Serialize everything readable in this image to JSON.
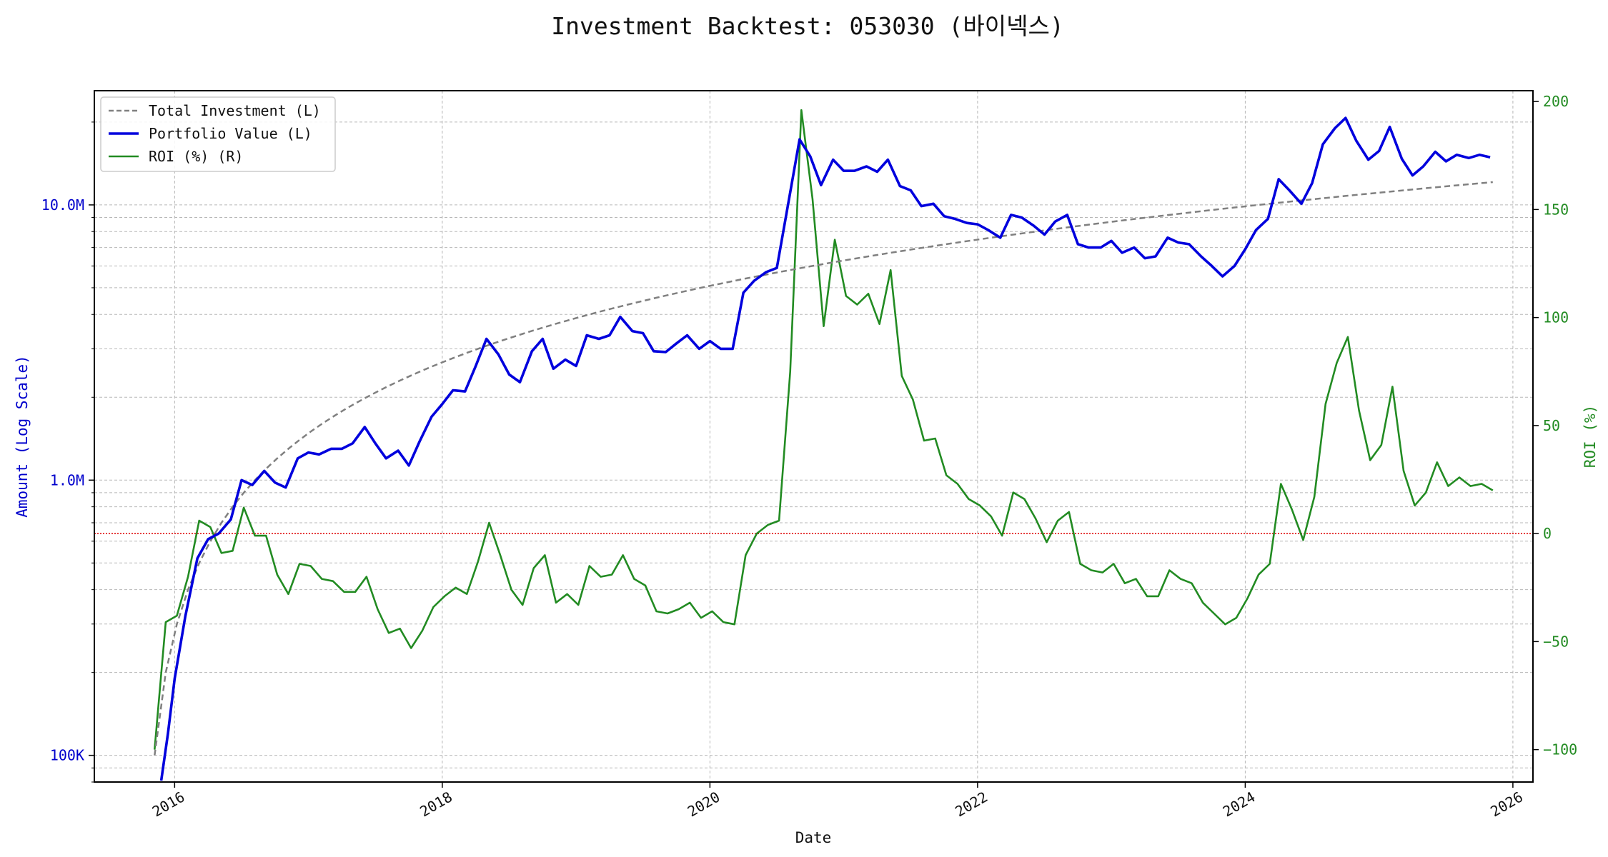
{
  "chart_data": {
    "type": "line",
    "title": "Investment Backtest: 053030 (바이넥스)",
    "xlabel": "Date",
    "ylabel_left": "Amount (Log Scale)",
    "ylabel_right": "ROI (%)",
    "left_scale": "log",
    "xlim": [
      2015.4,
      2026.15
    ],
    "ylim_left": [
      80000,
      26000000
    ],
    "ylim_right": [
      -115,
      205
    ],
    "x_ticks": [
      {
        "value": 2016,
        "label": "2016"
      },
      {
        "value": 2018,
        "label": "2018"
      },
      {
        "value": 2020,
        "label": "2020"
      },
      {
        "value": 2022,
        "label": "2022"
      },
      {
        "value": 2024,
        "label": "2024"
      },
      {
        "value": 2026,
        "label": "2026"
      }
    ],
    "y_left_ticks": [
      {
        "value": 100000,
        "label": "100K"
      },
      {
        "value": 1000000,
        "label": "1.0M"
      },
      {
        "value": 10000000,
        "label": "10.0M"
      }
    ],
    "y_right_ticks": [
      {
        "value": -100,
        "label": "−100"
      },
      {
        "value": -50,
        "label": "−50"
      },
      {
        "value": 0,
        "label": "0"
      },
      {
        "value": 50,
        "label": "50"
      },
      {
        "value": 100,
        "label": "100"
      },
      {
        "value": 150,
        "label": "150"
      },
      {
        "value": 200,
        "label": "200"
      }
    ],
    "grid": true,
    "legend_position": "top-left",
    "reference_line": {
      "axis": "right",
      "value": 0,
      "color": "#dd0000"
    },
    "colors": {
      "investment": "#808080",
      "portfolio": "#0000dd",
      "roi": "#228b22",
      "left_axis": "#0000cc",
      "right_axis": "#228b22"
    },
    "series": [
      {
        "name": "Total Investment (L)",
        "axis": "left",
        "style": "dashed",
        "x_start": 2015.85,
        "x_step": 0.0833333,
        "values": [
          100000,
          200000,
          300000,
          400000,
          500000,
          600000,
          700000,
          800000,
          900000,
          1000000,
          1100000,
          1200000,
          1300000,
          1400000,
          1500000,
          1600000,
          1700000,
          1800000,
          1900000,
          2000000,
          2100000,
          2200000,
          2300000,
          2400000,
          2500000,
          2600000,
          2700000,
          2800000,
          2900000,
          3000000,
          3100000,
          3200000,
          3300000,
          3400000,
          3500000,
          3600000,
          3700000,
          3800000,
          3900000,
          4000000,
          4100000,
          4200000,
          4300000,
          4400000,
          4500000,
          4600000,
          4700000,
          4800000,
          4900000,
          5000000,
          5100000,
          5200000,
          5300000,
          5400000,
          5500000,
          5600000,
          5700000,
          5800000,
          5900000,
          6000000,
          6100000,
          6200000,
          6300000,
          6400000,
          6500000,
          6600000,
          6700000,
          6800000,
          6900000,
          7000000,
          7100000,
          7200000,
          7300000,
          7400000,
          7500000,
          7600000,
          7700000,
          7800000,
          7900000,
          8000000,
          8100000,
          8200000,
          8300000,
          8400000,
          8500000,
          8600000,
          8700000,
          8800000,
          8900000,
          9000000,
          9100000,
          9200000,
          9300000,
          9400000,
          9500000,
          9600000,
          9700000,
          9800000,
          9900000,
          10000000,
          10100000,
          10200000,
          10300000,
          10400000,
          10500000,
          10600000,
          10700000,
          10800000,
          10900000,
          11000000,
          11100000,
          11200000,
          11300000,
          11400000,
          11500000,
          11600000,
          11700000,
          11800000,
          11900000,
          12000000,
          12100000
        ]
      },
      {
        "name": "Portfolio Value (L)",
        "axis": "left",
        "style": "solid",
        "x": [
          2015.9,
          2015.95,
          2016.0,
          2016.08,
          2016.17,
          2016.25,
          2016.33,
          2016.42,
          2016.5,
          2016.58,
          2016.67,
          2016.75,
          2016.83,
          2016.92,
          2017.0,
          2017.08,
          2017.17,
          2017.25,
          2017.33,
          2017.42,
          2017.5,
          2017.58,
          2017.67,
          2017.75,
          2017.83,
          2017.92,
          2018.0,
          2018.08,
          2018.17,
          2018.25,
          2018.33,
          2018.42,
          2018.5,
          2018.58,
          2018.67,
          2018.75,
          2018.83,
          2018.92,
          2019.0,
          2019.08,
          2019.17,
          2019.25,
          2019.33,
          2019.42,
          2019.5,
          2019.58,
          2019.67,
          2019.75,
          2019.83,
          2019.92,
          2020.0,
          2020.08,
          2020.17,
          2020.25,
          2020.33,
          2020.42,
          2020.5,
          2020.58,
          2020.67,
          2020.75,
          2020.83,
          2020.92,
          2021.0,
          2021.08,
          2021.17,
          2021.25,
          2021.33,
          2021.42,
          2021.5,
          2021.58,
          2021.67,
          2021.75,
          2021.83,
          2021.92,
          2022.0,
          2022.08,
          2022.17,
          2022.25,
          2022.33,
          2022.42,
          2022.5,
          2022.58,
          2022.67,
          2022.75,
          2022.83,
          2022.92,
          2023.0,
          2023.08,
          2023.17,
          2023.25,
          2023.33,
          2023.42,
          2023.5,
          2023.58,
          2023.67,
          2023.75,
          2023.83,
          2023.92,
          2024.0,
          2024.08,
          2024.17,
          2024.25,
          2024.33,
          2024.42,
          2024.5,
          2024.58,
          2024.67,
          2024.75,
          2024.83,
          2024.92,
          2025.0,
          2025.08,
          2025.17,
          2025.25,
          2025.33,
          2025.42,
          2025.5,
          2025.58,
          2025.67,
          2025.75,
          2025.83
        ],
        "values": [
          60000,
          120000,
          190000,
          320000,
          520000,
          610000,
          640000,
          720000,
          1000000,
          960000,
          1080000,
          980000,
          940000,
          1200000,
          1260000,
          1240000,
          1300000,
          1300000,
          1360000,
          1560000,
          1360000,
          1200000,
          1280000,
          1130000,
          1380000,
          1700000,
          1890000,
          2120000,
          2100000,
          2600000,
          3260000,
          2860000,
          2420000,
          2270000,
          2940000,
          3260000,
          2540000,
          2740000,
          2600000,
          3360000,
          3260000,
          3360000,
          3920000,
          3480000,
          3420000,
          2940000,
          2920000,
          3140000,
          3360000,
          3000000,
          3200000,
          3000000,
          3000000,
          4800000,
          5300000,
          5700000,
          5900000,
          9800000,
          17300000,
          15000000,
          11800000,
          14600000,
          13300000,
          13300000,
          13800000,
          13200000,
          14600000,
          11700000,
          11300000,
          9900000,
          10100000,
          9100000,
          8900000,
          8600000,
          8500000,
          8100000,
          7600000,
          9200000,
          9000000,
          8400000,
          7800000,
          8700000,
          9200000,
          7200000,
          7000000,
          7000000,
          7400000,
          6700000,
          7000000,
          6400000,
          6500000,
          7600000,
          7300000,
          7200000,
          6500000,
          6000000,
          5500000,
          6000000,
          6900000,
          8100000,
          8900000,
          12400000,
          11300000,
          10100000,
          12000000,
          16600000,
          19000000,
          20700000,
          17100000,
          14600000,
          15700000,
          19200000,
          14700000,
          12800000,
          13800000,
          15600000,
          14400000,
          15200000,
          14800000,
          15200000,
          14900000
        ]
      },
      {
        "name": "ROI (%) (R)",
        "axis": "right",
        "style": "solid",
        "x_start": 2015.85,
        "x_step": 0.0833333,
        "values": [
          -100,
          -41,
          -38,
          -20,
          6,
          3,
          -9,
          -8,
          12,
          -1,
          -1,
          -19,
          -28,
          -14,
          -15,
          -21,
          -22,
          -27,
          -27,
          -20,
          -35,
          -46,
          -44,
          -53,
          -45,
          -34,
          -29,
          -25,
          -28,
          -13,
          5,
          -10,
          -26,
          -33,
          -16,
          -10,
          -32,
          -28,
          -33,
          -15,
          -20,
          -19,
          -10,
          -21,
          -24,
          -36,
          -37,
          -35,
          -32,
          -39,
          -36,
          -41,
          -42,
          -10,
          0,
          4,
          6,
          75,
          196,
          155,
          96,
          136,
          110,
          106,
          111,
          97,
          122,
          73,
          62,
          43,
          44,
          27,
          23,
          16,
          13,
          8,
          -1,
          19,
          16,
          7,
          -4,
          6,
          10,
          -14,
          -17,
          -18,
          -14,
          -23,
          -21,
          -29,
          -29,
          -17,
          -21,
          -23,
          -32,
          -37,
          -42,
          -39,
          -30,
          -19,
          -14,
          23,
          11,
          -3,
          17,
          60,
          79,
          91,
          57,
          34,
          41,
          68,
          29,
          13,
          19,
          33,
          22,
          26,
          22,
          23,
          20
        ]
      }
    ]
  }
}
